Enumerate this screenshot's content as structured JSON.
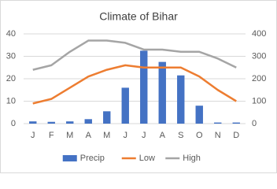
{
  "chart_data": {
    "type": "combo",
    "title": "Climate of Bihar",
    "categories": [
      "J",
      "F",
      "M",
      "A",
      "M",
      "J",
      "J",
      "A",
      "S",
      "O",
      "N",
      "D"
    ],
    "series": [
      {
        "name": "Precip",
        "type": "bar",
        "axis": "y2",
        "color": "#4472c4",
        "values": [
          10,
          8,
          10,
          20,
          55,
          160,
          325,
          275,
          215,
          80,
          5,
          5
        ]
      },
      {
        "name": "Low",
        "type": "line",
        "color": "#ed7d31",
        "values": [
          9,
          11,
          16,
          21,
          24,
          26,
          25,
          25,
          25,
          21,
          15,
          10
        ]
      },
      {
        "name": "High",
        "type": "line",
        "color": "#a5a5a5",
        "values": [
          24,
          26,
          32,
          37,
          37,
          36,
          33,
          33,
          32,
          32,
          29,
          25
        ]
      }
    ],
    "ylim": [
      0,
      40
    ],
    "yticks": [
      0,
      10,
      20,
      30,
      40
    ],
    "y2lim": [
      0,
      400
    ],
    "y2ticks": [
      0,
      100,
      200,
      300,
      400
    ],
    "grid": true,
    "legend": "bottom"
  }
}
